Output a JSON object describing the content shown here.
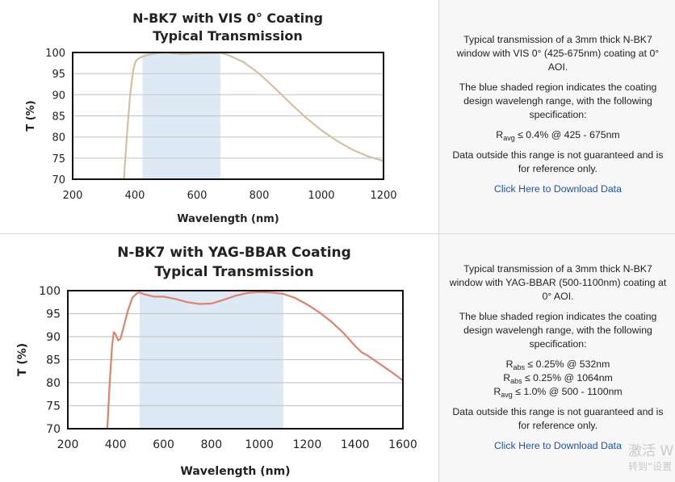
{
  "charts": [
    {
      "title_line1": "N-BK7 with VIS 0° Coating",
      "title_line2": "Typical Transmission",
      "description": "Typical transmission of a 3mm thick N-BK7 window with VIS 0° (425-675nm) coating at 0° AOI.",
      "shaded_note": "The blue shaded region indicates the coating design wavelengh range, with the following specification:",
      "specs": [
        {
          "sym": "R",
          "sub": "avg",
          "text": "≤ 0.4% @ 425 - 675nm"
        }
      ],
      "disclaimer": "Data outside this range is not guaranteed and is for reference only.",
      "link": "Click Here to Download Data"
    },
    {
      "title_line1": "N-BK7 with YAG-BBAR Coating",
      "title_line2": "Typical Transmission",
      "description": "Typical transmission of a 3mm thick N-BK7 window with YAG-BBAR (500-1100nm) coating at 0° AOI.",
      "shaded_note": "The blue shaded region indicates the coating design wavelengh range, with the following specification:",
      "specs": [
        {
          "sym": "R",
          "sub": "abs",
          "text": "≤ 0.25% @ 532nm"
        },
        {
          "sym": "R",
          "sub": "abs",
          "text": "≤ 0.25% @ 1064nm"
        },
        {
          "sym": "R",
          "sub": "avg",
          "text": "≤ 1.0% @ 500 - 1100nm"
        }
      ],
      "disclaimer": "Data outside this range is not guaranteed and is for reference only.",
      "link": "Click Here to Download Data"
    }
  ],
  "watermark": {
    "line1": "激活 W",
    "line2": "转到“设置"
  },
  "chart_data": [
    {
      "type": "line",
      "title": "N-BK7 with VIS 0° Coating Typical Transmission",
      "xlabel": "Wavelength (nm)",
      "ylabel": "T (%)",
      "xlim": [
        200,
        1200
      ],
      "ylim": [
        70,
        100
      ],
      "xticks": [
        200,
        400,
        600,
        800,
        1000,
        1200
      ],
      "yticks": [
        70,
        75,
        80,
        85,
        90,
        95,
        100
      ],
      "grid": "horizontal",
      "shaded_range": [
        425,
        675
      ],
      "shade_color": "#dde9f4",
      "line_color": "#d4c0a0",
      "series": [
        {
          "x": [
            365,
            375,
            385,
            395,
            402,
            410,
            420,
            440,
            470,
            500,
            550,
            600,
            650,
            675,
            700,
            750,
            800,
            850,
            900,
            950,
            1000,
            1050,
            1100,
            1150,
            1200
          ],
          "y": [
            70,
            81,
            90,
            96,
            97.8,
            98.5,
            98.9,
            99.4,
            99.8,
            100,
            99.6,
            99.8,
            99.8,
            99.9,
            99.4,
            97.7,
            95,
            91.6,
            88,
            84.6,
            81.6,
            79.1,
            77,
            75.4,
            74.3
          ]
        }
      ]
    },
    {
      "type": "line",
      "title": "N-BK7 with YAG-BBAR Coating Typical Transmission",
      "xlabel": "Wavelength (nm)",
      "ylabel": "T (%)",
      "xlim": [
        200,
        1600
      ],
      "ylim": [
        70,
        100
      ],
      "xticks": [
        200,
        400,
        600,
        800,
        1000,
        1200,
        1400,
        1600
      ],
      "yticks": [
        70,
        75,
        80,
        85,
        90,
        95,
        100
      ],
      "grid": "horizontal",
      "shaded_range": [
        500,
        1100
      ],
      "shade_color": "#dde9f4",
      "line_color": "#e0826c",
      "series": [
        {
          "x": [
            365,
            375,
            385,
            392,
            400,
            410,
            420,
            430,
            450,
            470,
            490,
            500,
            520,
            560,
            600,
            650,
            700,
            750,
            800,
            850,
            900,
            950,
            1000,
            1050,
            1100,
            1150,
            1200,
            1250,
            1300,
            1350,
            1400,
            1430,
            1450,
            1500,
            1550,
            1600
          ],
          "y": [
            70,
            80,
            88,
            91,
            90.5,
            89.2,
            89.5,
            91.5,
            95.5,
            98.5,
            99.5,
            99.6,
            99.2,
            98.7,
            98.7,
            98.2,
            97.5,
            97.1,
            97.2,
            98,
            98.9,
            99.5,
            99.7,
            99.6,
            99.3,
            98.4,
            97,
            95.3,
            93.3,
            90.9,
            88,
            86.5,
            86,
            84.2,
            82.4,
            80.5
          ]
        }
      ]
    }
  ]
}
